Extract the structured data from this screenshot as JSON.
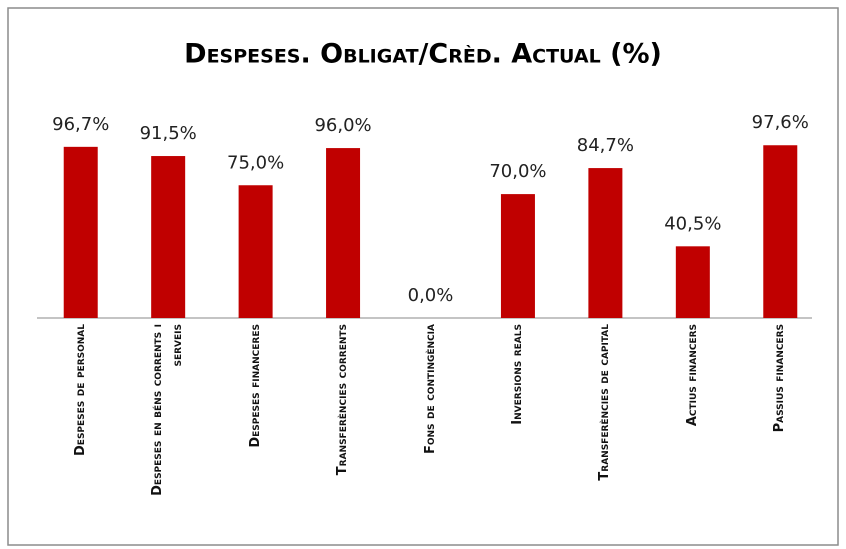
{
  "chart_data": {
    "type": "bar",
    "title": "Despeses. Obligat/Crèd. Actual (%)",
    "categories": [
      "Despeses de personal",
      "Despeses en béns corrents i serveis",
      "Despeses financeres",
      "Transferències corrents",
      "Fons de contingència",
      "Inversions reals",
      "Transferències de capital",
      "Actius financers",
      "Passius financers"
    ],
    "values": [
      96.7,
      91.5,
      75.0,
      96.0,
      0.0,
      70.0,
      84.7,
      40.5,
      97.6
    ],
    "value_labels": [
      "96,7%",
      "91,5%",
      "75,0%",
      "96,0%",
      "0,0%",
      "70,0%",
      "84,7%",
      "40,5%",
      "97,6%"
    ],
    "color": "#c00000",
    "ylim": [
      0,
      100
    ]
  }
}
